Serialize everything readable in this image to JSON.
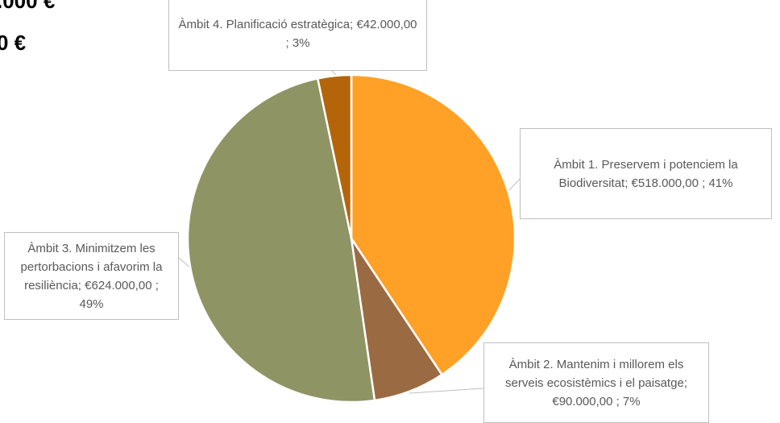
{
  "cropped_text": [
    ".000 €",
    "0 €"
  ],
  "chart_data": {
    "type": "pie",
    "categories": [
      "Àmbit 1. Preservem i potenciem la Biodiversitat;",
      "Àmbit 2. Mantenim i millorem els serveis ecosistèmics i el paisatge;",
      "Àmbit 3. Minimitzem les pertorbacions i afavorim la resiliència;",
      "Àmbit 4. Planificació estratègica;"
    ],
    "values": [
      518000,
      90000,
      624000,
      42000
    ],
    "value_labels": [
      "€518.000,00 ; 41%",
      "€90.000,00 ; 7%",
      "€624.000,00 ; 49%",
      "€42.000,00 ; 3%"
    ],
    "colors": [
      "#ffa126",
      "#9a6b43",
      "#8f9464",
      "#b4650a"
    ]
  }
}
